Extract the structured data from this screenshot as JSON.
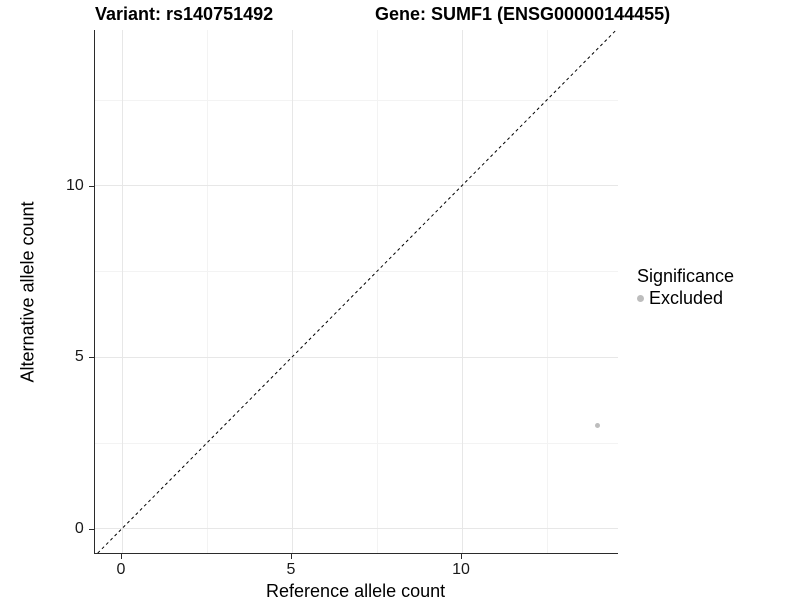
{
  "header": {
    "title_left": "Variant: rs140751492",
    "title_right": "Gene: SUMF1 (ENSG00000144455)"
  },
  "chart_data": {
    "type": "scatter",
    "xlabel": "Reference allele count",
    "ylabel": "Alternative allele count",
    "x_ticks": [
      0,
      5,
      10
    ],
    "y_ticks": [
      0,
      5,
      10
    ],
    "xlim": [
      -0.8,
      14.6
    ],
    "ylim": [
      -0.72,
      14.53
    ],
    "minor_grid_step": 2.5,
    "grid": "major+minor",
    "points": [
      {
        "x": 14,
        "y": 3,
        "significance": "Excluded"
      }
    ],
    "identity_line": {
      "slope": 1,
      "intercept": 0,
      "style": "dashed"
    },
    "legend": {
      "title": "Significance",
      "position": "right",
      "entries": [
        {
          "label": "Excluded",
          "color": "#bdbdbd"
        }
      ]
    }
  },
  "colors": {
    "background": "#ffffff",
    "grid_major": "#e7e7e7",
    "grid_minor": "#f3f3f3",
    "axis_line": "#2b2b2b",
    "point": "#bdbdbd",
    "dashed_line": "#000000",
    "text": "#000000"
  }
}
